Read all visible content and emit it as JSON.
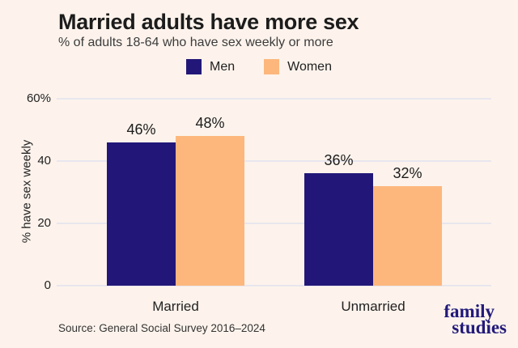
{
  "colors": {
    "background": "#fdf3ec",
    "men": "#221778",
    "women": "#fdb77d",
    "gridline": "#e8e6ee",
    "title_text": "#1c1c1c",
    "logo_navy": "#221a7a"
  },
  "header": {
    "title": "Married adults have more sex",
    "subtitle": "% of adults 18-64 who have sex weekly or more"
  },
  "chart_data": {
    "type": "bar",
    "title": "Married adults have more sex",
    "subtitle": "% of adults 18-64 who have sex weekly or more",
    "categories": [
      "Married",
      "Unmarried"
    ],
    "series": [
      {
        "name": "Men",
        "color": "#221778",
        "values": [
          46,
          36
        ]
      },
      {
        "name": "Women",
        "color": "#fdb77d",
        "values": [
          48,
          32
        ]
      }
    ],
    "value_suffix": "%",
    "ylabel": "% have sex weekly",
    "ylim": [
      0,
      60
    ],
    "yticks": [
      {
        "value": 0,
        "label": "0"
      },
      {
        "value": 20,
        "label": "20"
      },
      {
        "value": 40,
        "label": "40"
      },
      {
        "value": 60,
        "label": "60%"
      }
    ],
    "grid": "horizontal",
    "legend_position": "top-center"
  },
  "footer": {
    "source": "Source: General Social Survey 2016–2024",
    "logo_line1": "family",
    "logo_line2": "studies"
  }
}
